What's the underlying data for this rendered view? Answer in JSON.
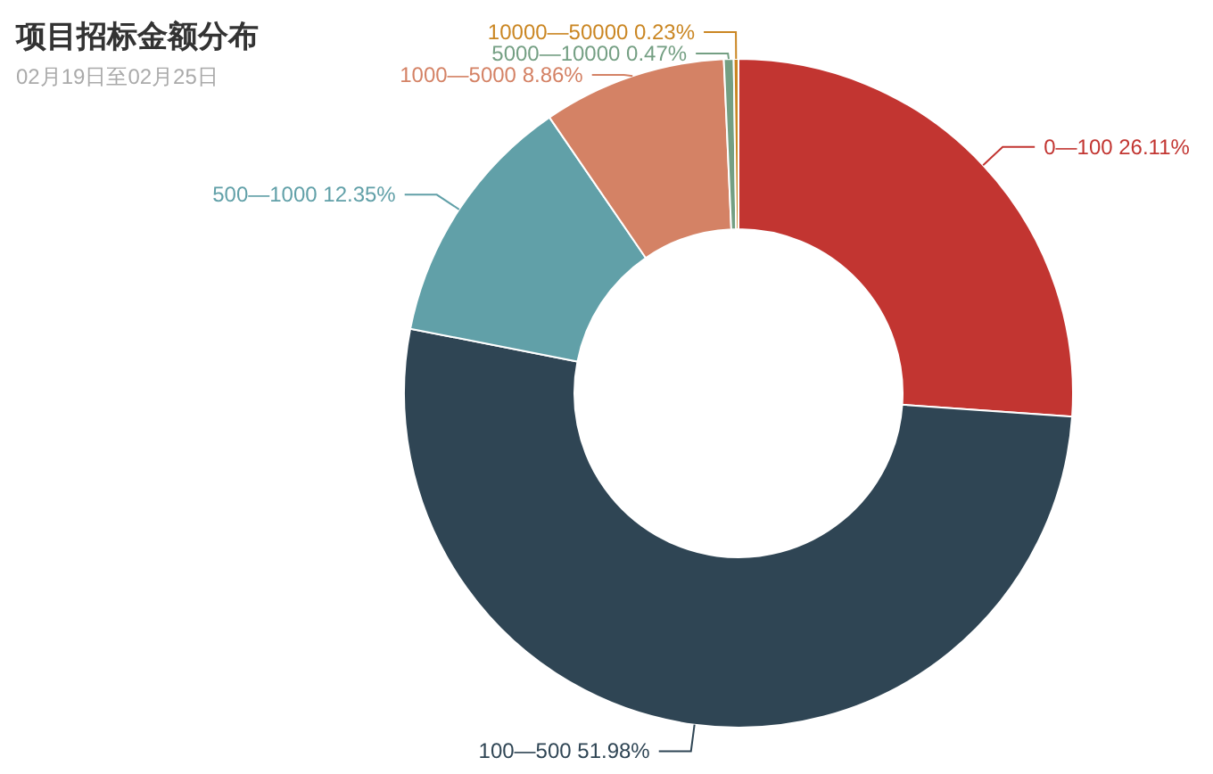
{
  "chart_data": {
    "type": "donut",
    "title": "项目招标金额分布",
    "subtitle": "02月19日至02月25日",
    "categories": [
      "0—100",
      "100—500",
      "500—1000",
      "1000—5000",
      "5000—10000",
      "10000—50000"
    ],
    "values": [
      26.11,
      51.98,
      12.35,
      8.86,
      0.47,
      0.23
    ],
    "value_labels": [
      "26.11%",
      "51.98%",
      "12.35%",
      "8.86%",
      "0.47%",
      "0.23%"
    ],
    "colors": [
      "#c23531",
      "#2f4554",
      "#61a0a8",
      "#d48265",
      "#749f83",
      "#ca8622"
    ]
  }
}
